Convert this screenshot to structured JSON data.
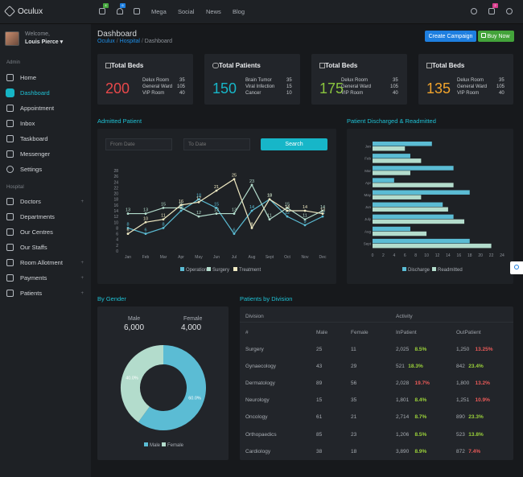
{
  "app": {
    "name": "Oculux"
  },
  "topnav": {
    "links": [
      "Mega",
      "Social",
      "News",
      "Blog"
    ],
    "badges": {
      "mail": "4",
      "bell": "6",
      "chat": "2"
    }
  },
  "user": {
    "welcome": "Welcome,",
    "name": "Louis Pierce ▾"
  },
  "sidebar": {
    "admin_label": "Admin",
    "hospital_label": "Hospital",
    "admin_items": [
      {
        "label": "Home"
      },
      {
        "label": "Dashboard"
      },
      {
        "label": "Appointment"
      },
      {
        "label": "Inbox"
      },
      {
        "label": "Taskboard"
      },
      {
        "label": "Messenger"
      },
      {
        "label": "Settings"
      }
    ],
    "hospital_items": [
      {
        "label": "Doctors"
      },
      {
        "label": "Departments"
      },
      {
        "label": "Our Centres"
      },
      {
        "label": "Our Staffs"
      },
      {
        "label": "Room Allotment"
      },
      {
        "label": "Payments"
      },
      {
        "label": "Patients"
      }
    ]
  },
  "page": {
    "title": "Dashboard",
    "breadcrumb": [
      "Oculux",
      "Hospital",
      "Dashboard"
    ],
    "create_campaign": "Create Campaign",
    "buy_now": "Buy Now"
  },
  "stats": [
    {
      "title": "Total Beds",
      "value": "200",
      "color": "#e8484a",
      "rows": [
        [
          "Delux Room",
          "35"
        ],
        [
          "General Ward",
          "105"
        ],
        [
          "VIP Room",
          "40"
        ]
      ]
    },
    {
      "title": "Total Patients",
      "value": "150",
      "color": "#17b6c8",
      "rows": [
        [
          "Brain Tumor",
          "35"
        ],
        [
          "Viral Infection",
          "15"
        ],
        [
          "Cancer",
          "10"
        ]
      ]
    },
    {
      "title": "Total Beds",
      "value": "175",
      "color": "#8ac53e",
      "rows": [
        [
          "Delux Room",
          "35"
        ],
        [
          "General Ward",
          "105"
        ],
        [
          "VIP Room",
          "40"
        ]
      ]
    },
    {
      "title": "Total Beds",
      "value": "135",
      "color": "#f2a42c",
      "rows": [
        [
          "Delux Room",
          "35"
        ],
        [
          "General Ward",
          "105"
        ],
        [
          "VIP Room",
          "40"
        ]
      ]
    }
  ],
  "admitted": {
    "title": "Admitted Patient",
    "from_placeholder": "From Date",
    "to_placeholder": "To Date",
    "search_label": "Search"
  },
  "discharged": {
    "title": "Patient Discharged & Readmitted"
  },
  "gender": {
    "title": "By Gender",
    "male_label": "Male",
    "male_value": "6,000",
    "female_label": "Female",
    "female_value": "4,000"
  },
  "division": {
    "title": "Patients by Division",
    "h_division": "Division",
    "h_activity": "Activity",
    "h_num": "#",
    "h_male": "Male",
    "h_female": "Female",
    "h_in": "InPatient",
    "h_out": "OutPatient",
    "rows": [
      {
        "name": "Surgery",
        "male": "25",
        "female": "11",
        "in": "2,025",
        "in_pct": "8.5%",
        "in_dir": "up",
        "out": "1,250",
        "out_pct": "13.25%",
        "out_dir": "dn"
      },
      {
        "name": "Gynaecology",
        "male": "43",
        "female": "29",
        "in": "521",
        "in_pct": "18.3%",
        "in_dir": "up",
        "out": "842",
        "out_pct": "23.4%",
        "out_dir": "up"
      },
      {
        "name": "Dermatology",
        "male": "89",
        "female": "56",
        "in": "2,028",
        "in_pct": "19.7%",
        "in_dir": "dn",
        "out": "1,800",
        "out_pct": "13.2%",
        "out_dir": "dn"
      },
      {
        "name": "Neurology",
        "male": "15",
        "female": "35",
        "in": "1,801",
        "in_pct": "8.4%",
        "in_dir": "up",
        "out": "1,251",
        "out_pct": "10.9%",
        "out_dir": "dn"
      },
      {
        "name": "Oncology",
        "male": "61",
        "female": "21",
        "in": "2,714",
        "in_pct": "8.7%",
        "in_dir": "up",
        "out": "890",
        "out_pct": "23.3%",
        "out_dir": "up"
      },
      {
        "name": "Orthopaedics",
        "male": "85",
        "female": "23",
        "in": "1,206",
        "in_pct": "8.5%",
        "in_dir": "up",
        "out": "523",
        "out_pct": "13.8%",
        "out_dir": "up"
      },
      {
        "name": "Cardiology",
        "male": "38",
        "female": "18",
        "in": "3,890",
        "in_pct": "8.9%",
        "in_dir": "up",
        "out": "872",
        "out_pct": "7.4%",
        "out_dir": "dn"
      }
    ]
  },
  "colors": {
    "accent": "#17b6c8",
    "teal": "#5bbcd4",
    "mint": "#b3dccc",
    "cream": "#f0eac3",
    "primary_btn": "#1e7fe0",
    "success_btn": "#43a33a"
  },
  "chart_data": [
    {
      "type": "line",
      "categories": [
        "Jan",
        "Feb",
        "Mar",
        "Apr",
        "May",
        "Jun",
        "Jul",
        "Aug",
        "Sept",
        "Oct",
        "Nov",
        "Dec"
      ],
      "ylim": [
        0,
        28
      ],
      "yticks": [
        0,
        2,
        4,
        6,
        8,
        10,
        12,
        14,
        16,
        18,
        20,
        22,
        24,
        26,
        28
      ],
      "series": [
        {
          "name": "Operation",
          "color": "#5bbcd4",
          "values": [
            8,
            6,
            8,
            14,
            18,
            15,
            6,
            14,
            18,
            12,
            9,
            12
          ]
        },
        {
          "name": "Surgery",
          "color": "#b3dccc",
          "values": [
            13,
            13,
            15,
            15,
            12,
            13,
            13,
            23,
            11,
            15,
            11,
            14
          ]
        },
        {
          "name": "Treatment",
          "color": "#f0eac3",
          "values": [
            6,
            10,
            11,
            16,
            17,
            21,
            25,
            8,
            18,
            14,
            14,
            13
          ]
        }
      ],
      "legend": "bottom"
    },
    {
      "type": "bar",
      "orientation": "horizontal",
      "categories": [
        "Jan",
        "Feb",
        "Mar",
        "Apr",
        "May",
        "Jun",
        "July",
        "Aug",
        "Sept"
      ],
      "xlim": [
        0,
        24
      ],
      "xticks": [
        0,
        2,
        4,
        6,
        8,
        10,
        12,
        14,
        16,
        18,
        20,
        22,
        24
      ],
      "series": [
        {
          "name": "Discharge",
          "color": "#5bbcd4",
          "values": [
            11,
            7,
            15,
            4,
            18,
            13,
            15,
            7,
            18
          ]
        },
        {
          "name": "Readmitted",
          "color": "#b3dccc",
          "values": [
            6,
            9,
            7,
            15,
            9,
            14,
            17,
            10,
            22
          ]
        }
      ],
      "legend": "bottom"
    },
    {
      "type": "pie",
      "donut": true,
      "labels": [
        "Male",
        "Female"
      ],
      "values": [
        60,
        40
      ],
      "slice_labels": [
        "60.0%",
        "40.0%"
      ],
      "colors": [
        "#5bbcd4",
        "#b3dccc"
      ],
      "legend": "bottom"
    }
  ]
}
